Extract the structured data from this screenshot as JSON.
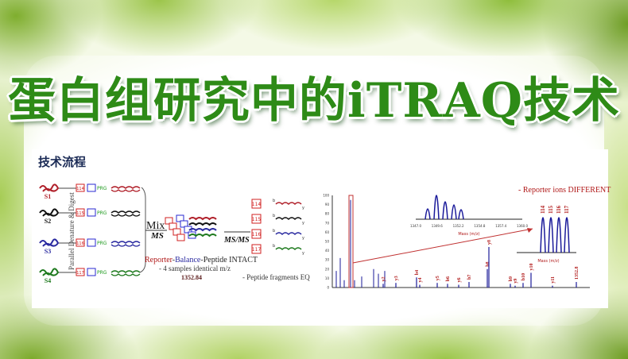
{
  "title": "蛋白组研究中的iTRAQ技术",
  "workflow": {
    "heading": "技术流程",
    "samples": [
      {
        "label": "S1",
        "color": "#b0202a"
      },
      {
        "label": "S2",
        "color": "#111111"
      },
      {
        "label": "S3",
        "color": "#2a2aa0"
      },
      {
        "label": "S4",
        "color": "#1e7a1e"
      }
    ],
    "tags": [
      [
        "114",
        "PRG"
      ],
      [
        "115",
        "PRG"
      ],
      [
        "116",
        "PRG"
      ],
      [
        "117",
        "PRG"
      ]
    ],
    "vertical_label": "Parallel Denature & Digest",
    "mix": "Mix",
    "ms": "MS",
    "msms": "MS/MS",
    "reporter_text": {
      "reporter": "Reporter",
      "balance": "Balance",
      "peptide": "Peptide INTACT"
    },
    "samples_text": "- 4 samples identical m/z",
    "mass": "1352.84",
    "reporter_boxes": [
      "114",
      "115",
      "116",
      "117"
    ],
    "fragments_text": "- Peptide fragments EQ"
  },
  "spectrum": {
    "reporter_note": "- Reporter ions DIFFERENT",
    "y_ticks": [
      "0",
      "10",
      "20",
      "30",
      "40",
      "50",
      "60",
      "70",
      "80",
      "90",
      "100"
    ],
    "peaks": [
      {
        "label": "y2",
        "intensity": 4
      },
      {
        "label": "y3",
        "intensity": 5
      },
      {
        "label": "b4",
        "intensity": 11
      },
      {
        "label": "y4",
        "intensity": 3
      },
      {
        "label": "y5",
        "intensity": 5
      },
      {
        "label": "b6",
        "intensity": 4
      },
      {
        "label": "y6",
        "intensity": 3
      },
      {
        "label": "b7",
        "intensity": 6
      },
      {
        "label": "b8",
        "intensity": 20
      },
      {
        "label": "y8",
        "intensity": 44
      },
      {
        "label": "b9",
        "intensity": 4
      },
      {
        "label": "y9",
        "intensity": 2
      },
      {
        "label": "b10",
        "intensity": 5
      },
      {
        "label": "y10",
        "intensity": 16
      },
      {
        "label": "y11",
        "intensity": 2
      },
      {
        "label": "1352.8",
        "intensity": 6
      }
    ],
    "inset_parent": {
      "x_ticks": [
        "1347.0",
        "1349.6",
        "1352.2",
        "1354.8",
        "1357.4",
        "1360.0"
      ],
      "xlabel": "Mass (m/z)"
    },
    "inset_reporter": {
      "labels": [
        "114",
        "115",
        "116",
        "117"
      ],
      "xlabel": "Mass (m/z)"
    },
    "colors": {
      "peak": "#1a1a9a",
      "annotation": "#b01818"
    }
  }
}
